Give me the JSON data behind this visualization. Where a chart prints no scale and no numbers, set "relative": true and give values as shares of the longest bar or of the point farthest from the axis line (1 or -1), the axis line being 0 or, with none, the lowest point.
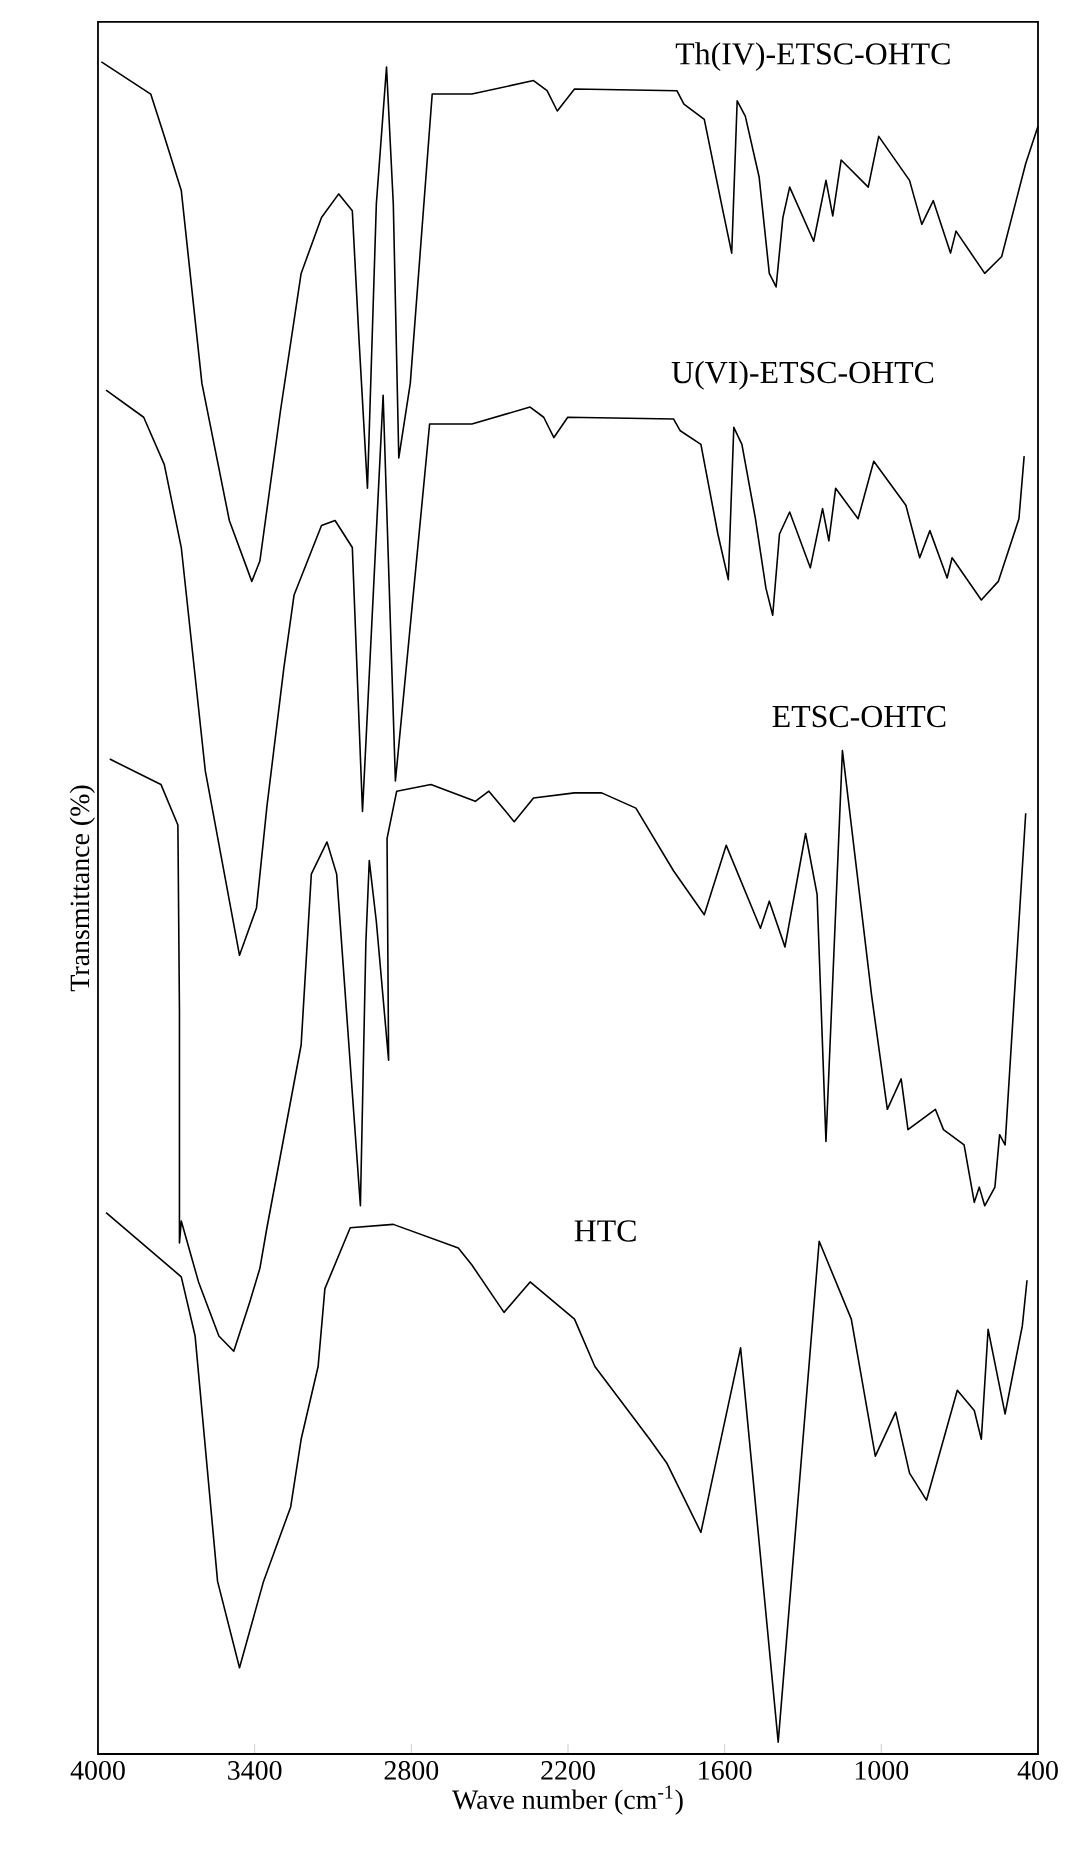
{
  "chart_data": {
    "type": "line",
    "relative": true,
    "xlabel": "Wave number (cm$^{-1}$)",
    "ylabel": "Transmittance (%)",
    "xlim": [
      4000,
      400
    ],
    "xticks": [
      4000,
      3400,
      2800,
      2200,
      1600,
      1000,
      400
    ],
    "tick_labels": "x",
    "series": [
      {
        "name": "Th(IV)-ETSC-OHTC",
        "color": "#000000",
        "x": [
          3987,
          3798,
          3746,
          3681,
          3602,
          3497,
          3411,
          3380,
          3301,
          3222,
          3144,
          3078,
          3026,
          3000,
          2968,
          2934,
          2895,
          2869,
          2848,
          2804,
          2720,
          2568,
          2332,
          2280,
          2241,
          2175,
          1783,
          1756,
          1678,
          1612,
          1573,
          1552,
          1521,
          1468,
          1429,
          1403,
          1377,
          1351,
          1259,
          1212,
          1186,
          1154,
          1050,
          1010,
          892,
          845,
          801,
          735,
          714,
          604,
          539,
          447,
          400
        ],
        "values": [
          1.0,
          0.981,
          0.956,
          0.924,
          0.81,
          0.729,
          0.693,
          0.705,
          0.794,
          0.875,
          0.908,
          0.922,
          0.912,
          0.835,
          0.748,
          0.916,
          0.997,
          0.916,
          0.766,
          0.81,
          0.981,
          0.981,
          0.989,
          0.983,
          0.971,
          0.984,
          0.983,
          0.975,
          0.966,
          0.916,
          0.887,
          0.977,
          0.968,
          0.932,
          0.875,
          0.867,
          0.908,
          0.926,
          0.894,
          0.93,
          0.909,
          0.942,
          0.926,
          0.956,
          0.93,
          0.904,
          0.918,
          0.887,
          0.9,
          0.875,
          0.885,
          0.94,
          0.962
        ]
      },
      {
        "name": "U(VI)-ETSC-OHTC",
        "color": "#000000",
        "x": [
          3969,
          3825,
          3746,
          3681,
          3589,
          3458,
          3393,
          3353,
          3288,
          3249,
          3144,
          3092,
          3026,
          2987,
          2908,
          2861,
          2730,
          2568,
          2345,
          2293,
          2254,
          2201,
          1796,
          1770,
          1691,
          1626,
          1586,
          1565,
          1534,
          1482,
          1442,
          1416,
          1390,
          1351,
          1272,
          1225,
          1201,
          1175,
          1089,
          1029,
          906,
          853,
          814,
          748,
          729,
          617,
          552,
          473,
          453
        ],
        "values": [
          0.806,
          0.79,
          0.762,
          0.713,
          0.581,
          0.472,
          0.5,
          0.56,
          0.642,
          0.685,
          0.726,
          0.729,
          0.713,
          0.557,
          0.803,
          0.575,
          0.786,
          0.786,
          0.796,
          0.79,
          0.778,
          0.79,
          0.789,
          0.782,
          0.774,
          0.721,
          0.694,
          0.784,
          0.774,
          0.73,
          0.689,
          0.673,
          0.721,
          0.734,
          0.701,
          0.736,
          0.717,
          0.748,
          0.73,
          0.764,
          0.738,
          0.707,
          0.723,
          0.695,
          0.707,
          0.682,
          0.693,
          0.73,
          0.767
        ]
      },
      {
        "name": "ETSC-OHTC",
        "color": "#000000",
        "x": [
          3955,
          3759,
          3694,
          3688,
          3688,
          3681,
          3615,
          3537,
          3480,
          3419,
          3380,
          3353,
          3222,
          3183,
          3123,
          3086,
          2995,
          2974,
          2961,
          2934,
          2887,
          2893,
          2856,
          2725,
          2555,
          2503,
          2406,
          2332,
          2175,
          2071,
          1940,
          1796,
          1678,
          1594,
          1463,
          1429,
          1369,
          1290,
          1246,
          1212,
          1149,
          1037,
          977,
          924,
          898,
          793,
          762,
          683,
          644,
          625,
          604,
          565,
          547,
          526,
          447
        ],
        "values": [
          0.588,
          0.573,
          0.549,
          0.439,
          0.302,
          0.315,
          0.279,
          0.247,
          0.238,
          0.267,
          0.287,
          0.311,
          0.419,
          0.52,
          0.539,
          0.52,
          0.324,
          0.48,
          0.528,
          0.492,
          0.41,
          0.541,
          0.569,
          0.573,
          0.563,
          0.569,
          0.551,
          0.565,
          0.568,
          0.568,
          0.559,
          0.522,
          0.496,
          0.537,
          0.488,
          0.504,
          0.477,
          0.544,
          0.508,
          0.362,
          0.593,
          0.448,
          0.381,
          0.399,
          0.369,
          0.381,
          0.369,
          0.36,
          0.326,
          0.335,
          0.324,
          0.335,
          0.366,
          0.36,
          0.556
        ]
      },
      {
        "name": "HTC",
        "color": "#000000",
        "x": [
          3969,
          3681,
          3628,
          3542,
          3458,
          3366,
          3262,
          3222,
          3157,
          3131,
          3034,
          2869,
          2620,
          2568,
          2445,
          2345,
          2175,
          2097,
          1887,
          1822,
          1691,
          1539,
          1395,
          1238,
          1115,
          1023,
          945,
          892,
          827,
          709,
          644,
          617,
          591,
          526,
          460,
          442
        ],
        "values": [
          0.32,
          0.282,
          0.247,
          0.102,
          0.051,
          0.102,
          0.146,
          0.186,
          0.229,
          0.275,
          0.311,
          0.313,
          0.299,
          0.289,
          0.261,
          0.279,
          0.257,
          0.229,
          0.186,
          0.172,
          0.131,
          0.24,
          0.007,
          0.303,
          0.257,
          0.176,
          0.202,
          0.166,
          0.15,
          0.215,
          0.203,
          0.186,
          0.251,
          0.201,
          0.253,
          0.28
        ]
      }
    ]
  }
}
